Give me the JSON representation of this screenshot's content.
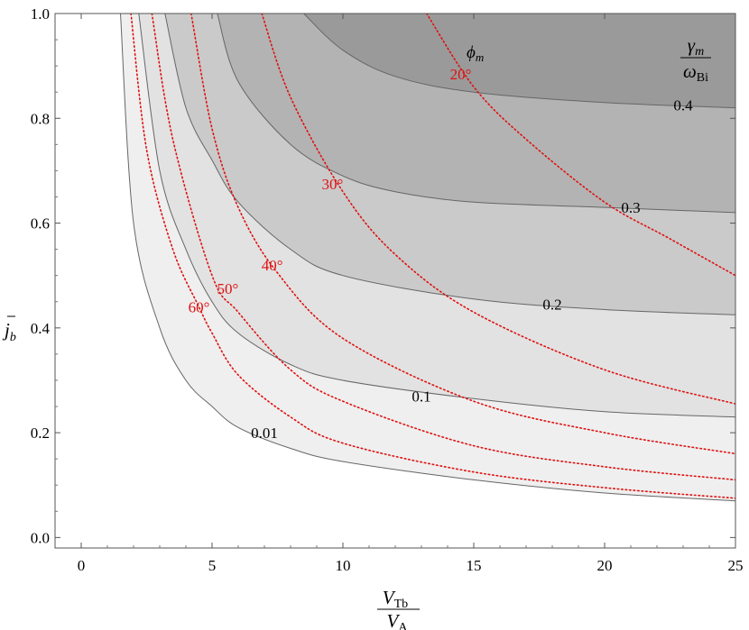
{
  "chart_data": {
    "type": "contour",
    "xlim": [
      -1,
      25
    ],
    "ylim": [
      -0.02,
      1.0
    ],
    "xticks": [
      0,
      5,
      10,
      15,
      20,
      25
    ],
    "yticks": [
      0.0,
      0.2,
      0.4,
      0.6,
      0.8,
      1.0
    ],
    "xtick_labels": [
      "0",
      "5",
      "10",
      "15",
      "20",
      "25"
    ],
    "ytick_labels": [
      "0.0",
      "0.2",
      "0.4",
      "0.6",
      "0.8",
      "1.0"
    ],
    "xlabel": {
      "numerator": "V",
      "numerator_sub": "Tb",
      "denominator": "V",
      "denominator_sub": "A"
    },
    "ylabel": {
      "main": "j",
      "sub": "b"
    },
    "legend": {
      "numerator": "γ",
      "numerator_sub": "m",
      "denominator": "ω",
      "denominator_sub": "Bi"
    },
    "angle_title": {
      "main": "ϕ",
      "sub": "m"
    },
    "contours": [
      {
        "level": 0.01,
        "label": "0.01",
        "points": [
          [
            1.5,
            1.0
          ],
          [
            2,
            0.6
          ],
          [
            3,
            0.4
          ],
          [
            4,
            0.3
          ],
          [
            5,
            0.25
          ],
          [
            6,
            0.21
          ],
          [
            8,
            0.17
          ],
          [
            10,
            0.145
          ],
          [
            15,
            0.11
          ],
          [
            20,
            0.085
          ],
          [
            25,
            0.07
          ]
        ],
        "label_at": [
          7,
          0.2
        ],
        "fill": "#efefef"
      },
      {
        "level": 0.1,
        "label": "0.1",
        "points": [
          [
            2.2,
            1.0
          ],
          [
            3,
            0.7
          ],
          [
            4,
            0.55
          ],
          [
            5,
            0.45
          ],
          [
            6,
            0.39
          ],
          [
            8,
            0.33
          ],
          [
            10,
            0.3
          ],
          [
            15,
            0.265
          ],
          [
            20,
            0.24
          ],
          [
            25,
            0.23
          ]
        ],
        "label_at": [
          13,
          0.27
        ],
        "fill": "#e2e2e2"
      },
      {
        "level": 0.2,
        "label": "0.2",
        "points": [
          [
            3.2,
            1.0
          ],
          [
            4,
            0.82
          ],
          [
            5,
            0.72
          ],
          [
            6,
            0.64
          ],
          [
            8,
            0.55
          ],
          [
            10,
            0.5
          ],
          [
            15,
            0.455
          ],
          [
            20,
            0.435
          ],
          [
            25,
            0.425
          ]
        ],
        "label_at": [
          18,
          0.445
        ],
        "fill": "#cacaca"
      },
      {
        "level": 0.3,
        "label": "0.3",
        "points": [
          [
            5.2,
            1.0
          ],
          [
            6,
            0.87
          ],
          [
            8,
            0.75
          ],
          [
            10,
            0.69
          ],
          [
            12,
            0.66
          ],
          [
            15,
            0.64
          ],
          [
            20,
            0.63
          ],
          [
            25,
            0.62
          ]
        ],
        "label_at": [
          21,
          0.63
        ],
        "fill": "#b3b3b3"
      },
      {
        "level": 0.4,
        "label": "0.4",
        "points": [
          [
            8.5,
            1.0
          ],
          [
            10,
            0.93
          ],
          [
            12,
            0.88
          ],
          [
            15,
            0.85
          ],
          [
            20,
            0.83
          ],
          [
            25,
            0.82
          ]
        ],
        "label_at": [
          23,
          0.825
        ],
        "fill": "#9a9a9a"
      }
    ],
    "angle_curves": [
      {
        "angle": "20°",
        "label": "20°",
        "points": [
          [
            13.2,
            1.0
          ],
          [
            15,
            0.86
          ],
          [
            17,
            0.76
          ],
          [
            20,
            0.64
          ],
          [
            22.5,
            0.57
          ],
          [
            25,
            0.5
          ]
        ],
        "label_at": [
          14.5,
          0.885
        ]
      },
      {
        "angle": "30°",
        "label": "30°",
        "points": [
          [
            6.9,
            1.0
          ],
          [
            8,
            0.84
          ],
          [
            10,
            0.66
          ],
          [
            12,
            0.54
          ],
          [
            15,
            0.43
          ],
          [
            20,
            0.32
          ],
          [
            25,
            0.255
          ]
        ],
        "label_at": [
          9.6,
          0.675
        ]
      },
      {
        "angle": "40°",
        "label": "40°",
        "points": [
          [
            4.2,
            1.0
          ],
          [
            5,
            0.78
          ],
          [
            6,
            0.63
          ],
          [
            7.5,
            0.505
          ],
          [
            10,
            0.38
          ],
          [
            15,
            0.26
          ],
          [
            20,
            0.2
          ],
          [
            25,
            0.16
          ]
        ],
        "label_at": [
          7.3,
          0.52
        ]
      },
      {
        "angle": "50°",
        "label": "50°",
        "points": [
          [
            2.7,
            1.0
          ],
          [
            3.5,
            0.76
          ],
          [
            5,
            0.5
          ],
          [
            6,
            0.43
          ],
          [
            8,
            0.32
          ],
          [
            10,
            0.26
          ],
          [
            15,
            0.175
          ],
          [
            20,
            0.135
          ],
          [
            25,
            0.11
          ]
        ],
        "label_at": [
          5.6,
          0.475
        ]
      },
      {
        "angle": "60°",
        "label": "60°",
        "points": [
          [
            1.9,
            1.0
          ],
          [
            2.5,
            0.74
          ],
          [
            3.5,
            0.55
          ],
          [
            4.5,
            0.44
          ],
          [
            5,
            0.39
          ],
          [
            6,
            0.31
          ],
          [
            8,
            0.23
          ],
          [
            10,
            0.18
          ],
          [
            15,
            0.125
          ],
          [
            20,
            0.095
          ],
          [
            25,
            0.075
          ]
        ],
        "label_at": [
          4.5,
          0.44
        ]
      }
    ],
    "background_fill": "#ffffff",
    "curve_color": "#666666",
    "angle_color": "#e01010"
  }
}
